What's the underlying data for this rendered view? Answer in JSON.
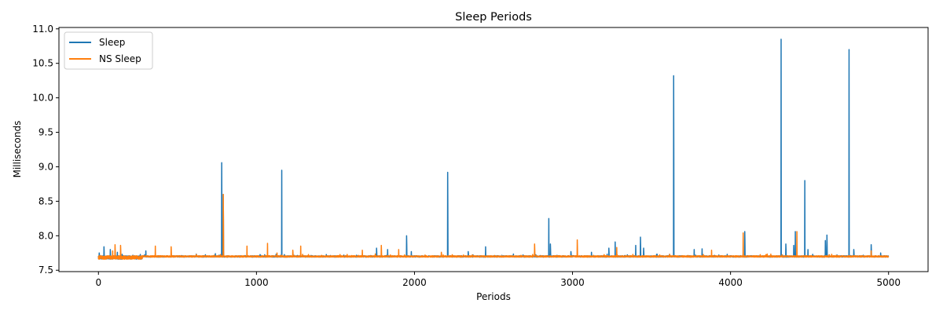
{
  "chart_data": {
    "type": "line",
    "title": "Sleep Periods",
    "xlabel": "Periods",
    "ylabel": "Milliseconds",
    "xlim": [
      -250,
      5250
    ],
    "ylim": [
      7.48,
      11.02
    ],
    "xticks": [
      0,
      1000,
      2000,
      3000,
      4000,
      5000
    ],
    "xtick_labels": [
      "0",
      "1000",
      "2000",
      "3000",
      "4000",
      "5000"
    ],
    "yticks": [
      7.5,
      8.0,
      8.5,
      9.0,
      9.5,
      10.0,
      10.5,
      11.0
    ],
    "ytick_labels": [
      "7.5",
      "8.0",
      "8.5",
      "9.0",
      "9.5",
      "10.0",
      "10.5",
      "11.0"
    ],
    "grid": false,
    "legend_position": "top-left",
    "series": [
      {
        "name": "Sleep",
        "color": "#1f77b4",
        "n_points": 5000,
        "baseline": 7.7,
        "spikes": [
          [
            5,
            7.75
          ],
          [
            35,
            7.84
          ],
          [
            75,
            7.8
          ],
          [
            120,
            7.76
          ],
          [
            150,
            7.73
          ],
          [
            180,
            7.68
          ],
          [
            300,
            7.78
          ],
          [
            740,
            7.74
          ],
          [
            780,
            9.06
          ],
          [
            790,
            8.6
          ],
          [
            1160,
            8.95
          ],
          [
            1760,
            7.82
          ],
          [
            1830,
            7.8
          ],
          [
            1950,
            8.0
          ],
          [
            1980,
            7.77
          ],
          [
            2210,
            8.92
          ],
          [
            2340,
            7.77
          ],
          [
            2450,
            7.84
          ],
          [
            2850,
            8.25
          ],
          [
            2860,
            7.88
          ],
          [
            2990,
            7.77
          ],
          [
            3120,
            7.76
          ],
          [
            3230,
            7.82
          ],
          [
            3270,
            7.91
          ],
          [
            3400,
            7.86
          ],
          [
            3430,
            7.98
          ],
          [
            3450,
            7.82
          ],
          [
            3640,
            10.32
          ],
          [
            3770,
            7.8
          ],
          [
            3820,
            7.81
          ],
          [
            4090,
            8.06
          ],
          [
            4320,
            10.85
          ],
          [
            4350,
            7.88
          ],
          [
            4400,
            7.86
          ],
          [
            4410,
            8.06
          ],
          [
            4470,
            8.8
          ],
          [
            4490,
            7.8
          ],
          [
            4600,
            7.93
          ],
          [
            4610,
            8.01
          ],
          [
            4750,
            10.7
          ],
          [
            4780,
            7.8
          ],
          [
            4890,
            7.87
          ],
          [
            4950,
            7.75
          ]
        ]
      },
      {
        "name": "NS Sleep",
        "color": "#ff7f0e",
        "n_points": 5000,
        "baseline": 7.7,
        "spikes": [
          [
            90,
            7.78
          ],
          [
            105,
            7.87
          ],
          [
            140,
            7.86
          ],
          [
            360,
            7.85
          ],
          [
            460,
            7.84
          ],
          [
            790,
            8.6
          ],
          [
            940,
            7.85
          ],
          [
            1070,
            7.89
          ],
          [
            1130,
            7.75
          ],
          [
            1230,
            7.79
          ],
          [
            1280,
            7.85
          ],
          [
            1670,
            7.79
          ],
          [
            1790,
            7.86
          ],
          [
            1900,
            7.8
          ],
          [
            2170,
            7.76
          ],
          [
            2760,
            7.88
          ],
          [
            3030,
            7.94
          ],
          [
            3280,
            7.83
          ],
          [
            3880,
            7.79
          ],
          [
            4080,
            8.04
          ],
          [
            4420,
            8.06
          ],
          [
            4640,
            7.73
          ],
          [
            4890,
            7.78
          ]
        ]
      }
    ]
  }
}
